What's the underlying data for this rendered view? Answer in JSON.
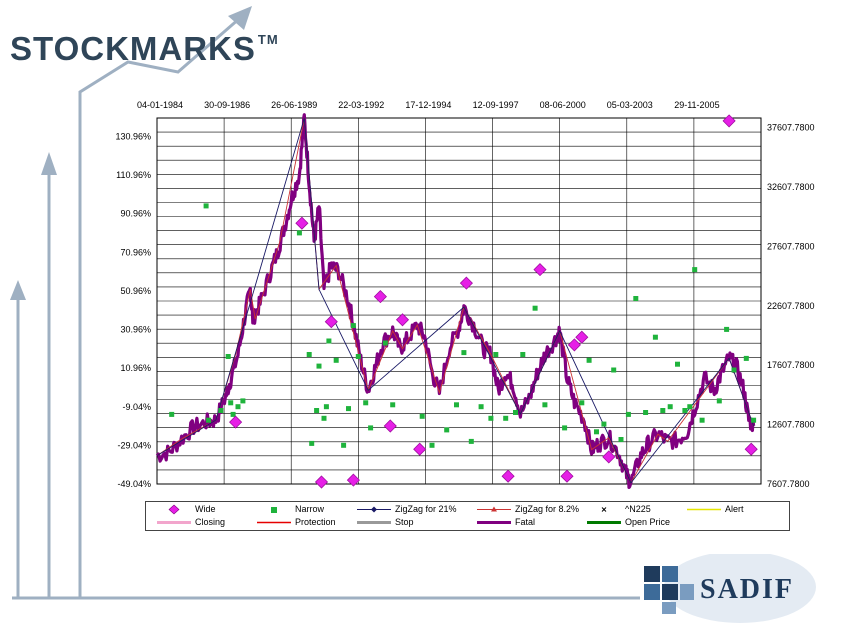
{
  "brand": {
    "name": "STOCKMARKS",
    "tm": "TM",
    "partner": "SADIF"
  },
  "colors": {
    "wide": "#e61fe6",
    "narrow": "#1fb33c",
    "zigzag21": "#1a1a66",
    "zigzag82": "#cc3333",
    "n225": "#000000",
    "alert": "#e6e600",
    "closing": "#f2a5cc",
    "protection": "#e60000",
    "stop": "#999999",
    "fatal": "#800080",
    "open": "#007a00",
    "arrows": "#9fb0c2",
    "brand": "#2f4558"
  },
  "chart_data": {
    "type": "line",
    "x_tick_labels": [
      "04-01-1984",
      "30-09-1986",
      "26-06-1989",
      "22-03-1992",
      "17-12-1994",
      "12-09-1997",
      "08-06-2000",
      "05-03-2003",
      "29-11-2005"
    ],
    "xlim": [
      1984.0,
      2008.6
    ],
    "y_left_ticks": [
      "130.96%",
      "110.96%",
      "90.96%",
      "70.96%",
      "50.96%",
      "30.96%",
      "10.96%",
      "-9.04%",
      "-29.04%",
      "-49.04%"
    ],
    "y_left_lim": [
      -49.04,
      140.5
    ],
    "y_right_ticks": [
      "37607.7800",
      "32607.7800",
      "27607.7800",
      "22607.7800",
      "17607.7800",
      "12607.7800",
      "7607.7800"
    ],
    "y_right_lim": [
      7607.78,
      38422.0
    ],
    "series": [
      {
        "name": "Fatal",
        "axis": "right",
        "points": [
          [
            1984.0,
            10000
          ],
          [
            1984.5,
            10300
          ],
          [
            1985.0,
            11400
          ],
          [
            1985.5,
            12400
          ],
          [
            1986.0,
            12800
          ],
          [
            1986.4,
            13000
          ],
          [
            1986.8,
            15000
          ],
          [
            1987.0,
            16400
          ],
          [
            1987.3,
            18500
          ],
          [
            1987.6,
            22000
          ],
          [
            1987.8,
            24000
          ],
          [
            1987.9,
            21500
          ],
          [
            1988.2,
            22800
          ],
          [
            1988.6,
            25300
          ],
          [
            1988.9,
            27100
          ],
          [
            1989.2,
            29300
          ],
          [
            1989.5,
            31800
          ],
          [
            1989.8,
            33700
          ],
          [
            1990.0,
            38400
          ],
          [
            1990.2,
            33000
          ],
          [
            1990.4,
            28000
          ],
          [
            1990.6,
            31000
          ],
          [
            1990.8,
            24000
          ],
          [
            1991.1,
            26000
          ],
          [
            1991.4,
            25500
          ],
          [
            1991.8,
            23000
          ],
          [
            1992.0,
            21000
          ],
          [
            1992.3,
            18000
          ],
          [
            1992.6,
            15500
          ],
          [
            1992.9,
            17500
          ],
          [
            1993.2,
            19500
          ],
          [
            1993.6,
            20500
          ],
          [
            1993.9,
            19000
          ],
          [
            1994.2,
            19800
          ],
          [
            1994.6,
            21000
          ],
          [
            1994.9,
            20000
          ],
          [
            1995.2,
            17000
          ],
          [
            1995.5,
            15300
          ],
          [
            1995.9,
            19000
          ],
          [
            1996.3,
            20800
          ],
          [
            1996.5,
            22500
          ],
          [
            1996.9,
            21000
          ],
          [
            1997.3,
            19000
          ],
          [
            1997.6,
            18500
          ],
          [
            1997.9,
            15500
          ],
          [
            1998.2,
            17000
          ],
          [
            1998.5,
            16000
          ],
          [
            1998.8,
            13500
          ],
          [
            1999.2,
            15000
          ],
          [
            1999.5,
            17000
          ],
          [
            1999.8,
            18500
          ],
          [
            2000.2,
            19700
          ],
          [
            2000.4,
            20500
          ],
          [
            2000.7,
            16500
          ],
          [
            2001.0,
            14500
          ],
          [
            2001.4,
            13000
          ],
          [
            2001.7,
            10500
          ],
          [
            2002.0,
            11000
          ],
          [
            2002.4,
            11500
          ],
          [
            2002.8,
            10200
          ],
          [
            2003.1,
            8500
          ],
          [
            2003.3,
            7700
          ],
          [
            2003.7,
            10000
          ],
          [
            2004.0,
            11000
          ],
          [
            2004.4,
            11800
          ],
          [
            2004.8,
            11200
          ],
          [
            2005.2,
            11300
          ],
          [
            2005.6,
            12000
          ],
          [
            2005.9,
            14000
          ],
          [
            2006.3,
            16500
          ],
          [
            2006.7,
            15500
          ],
          [
            2007.0,
            17000
          ],
          [
            2007.3,
            18200
          ],
          [
            2007.6,
            17500
          ],
          [
            2007.9,
            15500
          ],
          [
            2008.1,
            13000
          ],
          [
            2008.3,
            12500
          ]
        ]
      },
      {
        "name": "ZigZag for 8.2%",
        "axis": "right",
        "points": [
          [
            1984.0,
            10000
          ],
          [
            1985.0,
            11400
          ],
          [
            1986.4,
            13000
          ],
          [
            1987.2,
            18500
          ],
          [
            1987.8,
            24000
          ],
          [
            1988.0,
            21500
          ],
          [
            1989.0,
            28000
          ],
          [
            1990.0,
            38400
          ],
          [
            1990.6,
            24000
          ],
          [
            1991.3,
            26000
          ],
          [
            1992.6,
            15500
          ],
          [
            1993.6,
            20500
          ],
          [
            1994.0,
            19000
          ],
          [
            1994.6,
            21000
          ],
          [
            1995.5,
            15300
          ],
          [
            1996.5,
            22500
          ],
          [
            1997.6,
            18500
          ],
          [
            1998.8,
            13500
          ],
          [
            2000.4,
            20500
          ],
          [
            2001.7,
            10500
          ],
          [
            2002.4,
            11500
          ],
          [
            2003.3,
            7700
          ],
          [
            2004.4,
            11800
          ],
          [
            2004.8,
            11200
          ],
          [
            2007.3,
            18200
          ],
          [
            2008.3,
            12500
          ]
        ]
      },
      {
        "name": "ZigZag for 21%",
        "axis": "right",
        "points": [
          [
            1984.0,
            10000
          ],
          [
            1986.4,
            13000
          ],
          [
            1990.0,
            38400
          ],
          [
            1990.6,
            24000
          ],
          [
            1992.6,
            15500
          ],
          [
            1996.5,
            22500
          ],
          [
            1998.8,
            13500
          ],
          [
            2000.4,
            20500
          ],
          [
            2003.3,
            7700
          ],
          [
            2007.3,
            18200
          ],
          [
            2008.3,
            12500
          ]
        ]
      },
      {
        "name": "Wide",
        "axis": "left",
        "points": [
          [
            1987.2,
            -17
          ],
          [
            1989.9,
            86
          ],
          [
            1990.7,
            -48
          ],
          [
            1991.1,
            35
          ],
          [
            1992.0,
            -47
          ],
          [
            1993.1,
            48
          ],
          [
            1993.5,
            -19
          ],
          [
            1994.0,
            36
          ],
          [
            1994.7,
            -31
          ],
          [
            1996.6,
            55
          ],
          [
            1998.3,
            -45
          ],
          [
            1999.6,
            62
          ],
          [
            2000.7,
            -45
          ],
          [
            2001.0,
            23
          ],
          [
            2001.3,
            27
          ],
          [
            2002.4,
            -35
          ],
          [
            2007.3,
            139
          ],
          [
            2008.2,
            -31
          ]
        ]
      },
      {
        "name": "Narrow",
        "axis": "left",
        "points": [
          [
            1984.6,
            -13
          ],
          [
            1986.0,
            95
          ],
          [
            1986.1,
            -16
          ],
          [
            1986.6,
            -11
          ],
          [
            1986.9,
            17
          ],
          [
            1987.0,
            -7
          ],
          [
            1987.1,
            -13
          ],
          [
            1987.3,
            -9
          ],
          [
            1987.5,
            -6
          ],
          [
            1989.8,
            81
          ],
          [
            1990.2,
            18
          ],
          [
            1990.3,
            -28
          ],
          [
            1990.5,
            -11
          ],
          [
            1990.6,
            12
          ],
          [
            1990.8,
            -15
          ],
          [
            1990.9,
            -9
          ],
          [
            1991.0,
            25
          ],
          [
            1991.3,
            15
          ],
          [
            1991.6,
            -29
          ],
          [
            1991.8,
            -10
          ],
          [
            1992.0,
            33
          ],
          [
            1992.2,
            17
          ],
          [
            1992.5,
            -7
          ],
          [
            1992.7,
            -20
          ],
          [
            1993.3,
            24
          ],
          [
            1993.6,
            -8
          ],
          [
            1994.8,
            -14
          ],
          [
            1995.2,
            -29
          ],
          [
            1995.8,
            -21
          ],
          [
            1996.2,
            -8
          ],
          [
            1996.5,
            19
          ],
          [
            1996.8,
            -27
          ],
          [
            1997.2,
            -9
          ],
          [
            1997.6,
            -15
          ],
          [
            1997.8,
            18
          ],
          [
            1998.2,
            -15
          ],
          [
            1998.6,
            -12
          ],
          [
            1998.9,
            18
          ],
          [
            1999.4,
            42
          ],
          [
            1999.8,
            -8
          ],
          [
            2000.6,
            -20
          ],
          [
            2001.3,
            -7
          ],
          [
            2001.6,
            15
          ],
          [
            2001.9,
            -22
          ],
          [
            2002.2,
            -18
          ],
          [
            2002.6,
            10
          ],
          [
            2002.9,
            -26
          ],
          [
            2003.2,
            -13
          ],
          [
            2003.5,
            47
          ],
          [
            2003.9,
            -12
          ],
          [
            2004.3,
            27
          ],
          [
            2004.6,
            -11
          ],
          [
            2004.9,
            -9
          ],
          [
            2005.2,
            13
          ],
          [
            2005.5,
            -11
          ],
          [
            2005.7,
            -9
          ],
          [
            2005.9,
            62
          ],
          [
            2006.2,
            -16
          ],
          [
            2006.9,
            -6
          ],
          [
            2007.2,
            31
          ],
          [
            2007.5,
            10
          ],
          [
            2008.0,
            16
          ],
          [
            2008.3,
            -16
          ]
        ]
      }
    ],
    "legend": [
      {
        "name": "Wide",
        "symbol": "diamond",
        "color_key": "wide"
      },
      {
        "name": "Narrow",
        "symbol": "square",
        "color_key": "narrow"
      },
      {
        "name": "ZigZag for 21%",
        "symbol": "line-diamond",
        "color_key": "zigzag21"
      },
      {
        "name": "ZigZag for 8.2%",
        "symbol": "line-tri",
        "color_key": "zigzag82"
      },
      {
        "name": "^N225",
        "symbol": "x",
        "color_key": "n225"
      },
      {
        "name": "Alert",
        "symbol": "line",
        "color_key": "alert"
      },
      {
        "name": "Closing",
        "symbol": "thickline",
        "color_key": "closing"
      },
      {
        "name": "Protection",
        "symbol": "line",
        "color_key": "protection"
      },
      {
        "name": "Stop",
        "symbol": "thickline",
        "color_key": "stop"
      },
      {
        "name": "Fatal",
        "symbol": "thickline",
        "color_key": "fatal"
      },
      {
        "name": "Open Price",
        "symbol": "thickline",
        "color_key": "open"
      }
    ],
    "grid": "on",
    "legend_position": "bottom"
  }
}
